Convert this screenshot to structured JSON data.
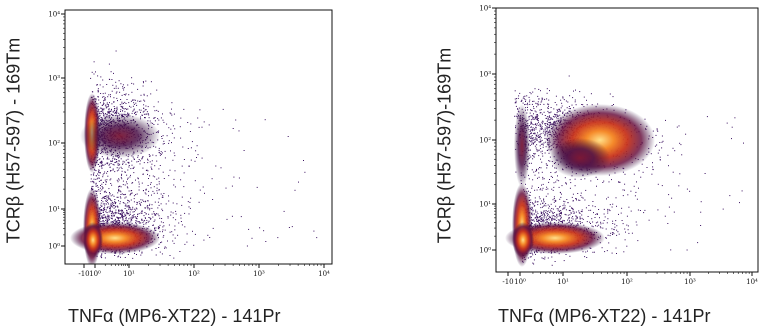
{
  "chart_data": [
    {
      "type": "scatter",
      "title": "",
      "xlabel": "TNFα (MP6-XT22) - 141Pr",
      "ylabel": "TCRβ (H57-597) - 169Tm",
      "x_scale": "arcsinh",
      "y_scale": "arcsinh",
      "xlim": [
        -10,
        10000
      ],
      "ylim": [
        -10,
        10000
      ],
      "x_tick_labels": [
        "-10",
        "10⁰",
        "10¹",
        "10²",
        "10³",
        "10⁴"
      ],
      "y_tick_labels": [
        "10⁰",
        "10¹",
        "10²",
        "10³",
        "10⁴"
      ],
      "density_clusters": [
        {
          "x": 0.3,
          "y": 250,
          "density": "high"
        },
        {
          "x": 4,
          "y": 200,
          "density": "medium"
        },
        {
          "x": 0.3,
          "y": 1,
          "density": "very high"
        },
        {
          "x": 4,
          "y": 1,
          "density": "high"
        }
      ]
    },
    {
      "type": "scatter",
      "title": "",
      "xlabel": "TNFα (MP6-XT22) - 141Pr",
      "ylabel": "TCRβ (H57-597)-169Tm",
      "x_scale": "arcsinh",
      "y_scale": "arcsinh",
      "xlim": [
        -10,
        10000
      ],
      "ylim": [
        -10,
        10000
      ],
      "x_tick_labels": [
        "-10",
        "10⁰",
        "10¹",
        "10²",
        "10³",
        "10⁴"
      ],
      "y_tick_labels": [
        "10⁰",
        "10¹",
        "10²",
        "10³",
        "10⁴"
      ],
      "density_clusters": [
        {
          "x": 0.3,
          "y": 200,
          "density": "medium"
        },
        {
          "x": 40,
          "y": 200,
          "density": "high"
        },
        {
          "x": 0.3,
          "y": 1,
          "density": "very high"
        },
        {
          "x": 4,
          "y": 1,
          "density": "high"
        }
      ]
    }
  ]
}
